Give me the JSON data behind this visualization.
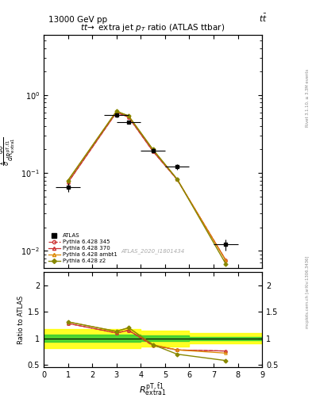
{
  "title_top_left": "13000 GeV pp",
  "title_top_right": "tt",
  "plot_title": "tt̅→ extra jet p_T ratio (ATLAS ttbar)",
  "watermark": "ATLAS_2020_I1801434",
  "ylabel_ratio": "Ratio to ATLAS",
  "rivet_label": "Rivet 3.1.10, ≥ 3.3M events",
  "mcplots_label": "mcplots.cern.ch [arXiv:1306.3436]",
  "xlim": [
    0,
    9
  ],
  "ylim_main": [
    0.006,
    6
  ],
  "ylim_ratio": [
    0.45,
    2.25
  ],
  "ratio_yticks": [
    0.5,
    1.0,
    1.5,
    2.0
  ],
  "atlas_x": [
    1.0,
    3.0,
    3.5,
    4.5,
    5.5,
    7.5
  ],
  "atlas_y": [
    0.065,
    0.55,
    0.45,
    0.195,
    0.12,
    0.012
  ],
  "atlas_yerr": [
    0.008,
    0.03,
    0.025,
    0.012,
    0.01,
    0.002
  ],
  "atlas_xerr": [
    0.5,
    0.5,
    0.5,
    0.5,
    0.5,
    0.5
  ],
  "pythia_x": [
    1.0,
    3.0,
    3.5,
    4.5,
    5.5,
    7.5
  ],
  "p345_y": [
    0.075,
    0.6,
    0.52,
    0.19,
    0.082,
    0.0076
  ],
  "p370_y": [
    0.075,
    0.6,
    0.52,
    0.19,
    0.082,
    0.0076
  ],
  "pambt1_y": [
    0.08,
    0.62,
    0.54,
    0.2,
    0.083,
    0.0075
  ],
  "pz2_y": [
    0.08,
    0.62,
    0.54,
    0.2,
    0.083,
    0.0068
  ],
  "ratio_p345_y": [
    1.28,
    1.1,
    1.15,
    0.86,
    0.78,
    0.76
  ],
  "ratio_p370_y": [
    1.28,
    1.1,
    1.15,
    0.87,
    0.78,
    0.76
  ],
  "ratio_pambt1_y": [
    1.31,
    1.13,
    1.2,
    0.88,
    0.78,
    0.72
  ],
  "ratio_pz2_y": [
    1.31,
    1.13,
    1.2,
    0.88,
    0.7,
    0.58
  ],
  "band_yellow_edges": [
    0,
    2,
    3,
    4,
    6,
    9
  ],
  "band_yellow_ylo": [
    0.82,
    0.82,
    0.82,
    0.85,
    0.9,
    0.9
  ],
  "band_yellow_yhi": [
    1.18,
    1.18,
    1.18,
    1.15,
    1.1,
    1.1
  ],
  "band_green_edges": [
    0,
    2,
    3,
    4,
    6,
    9
  ],
  "band_green_ylo": [
    0.93,
    0.93,
    0.93,
    0.95,
    0.97,
    0.97
  ],
  "band_green_yhi": [
    1.07,
    1.07,
    1.07,
    1.05,
    1.03,
    1.03
  ],
  "color_p345": "#cc3333",
  "color_p370": "#cc3333",
  "color_pambt1": "#dd8800",
  "color_pz2": "#888800",
  "color_atlas": "black"
}
